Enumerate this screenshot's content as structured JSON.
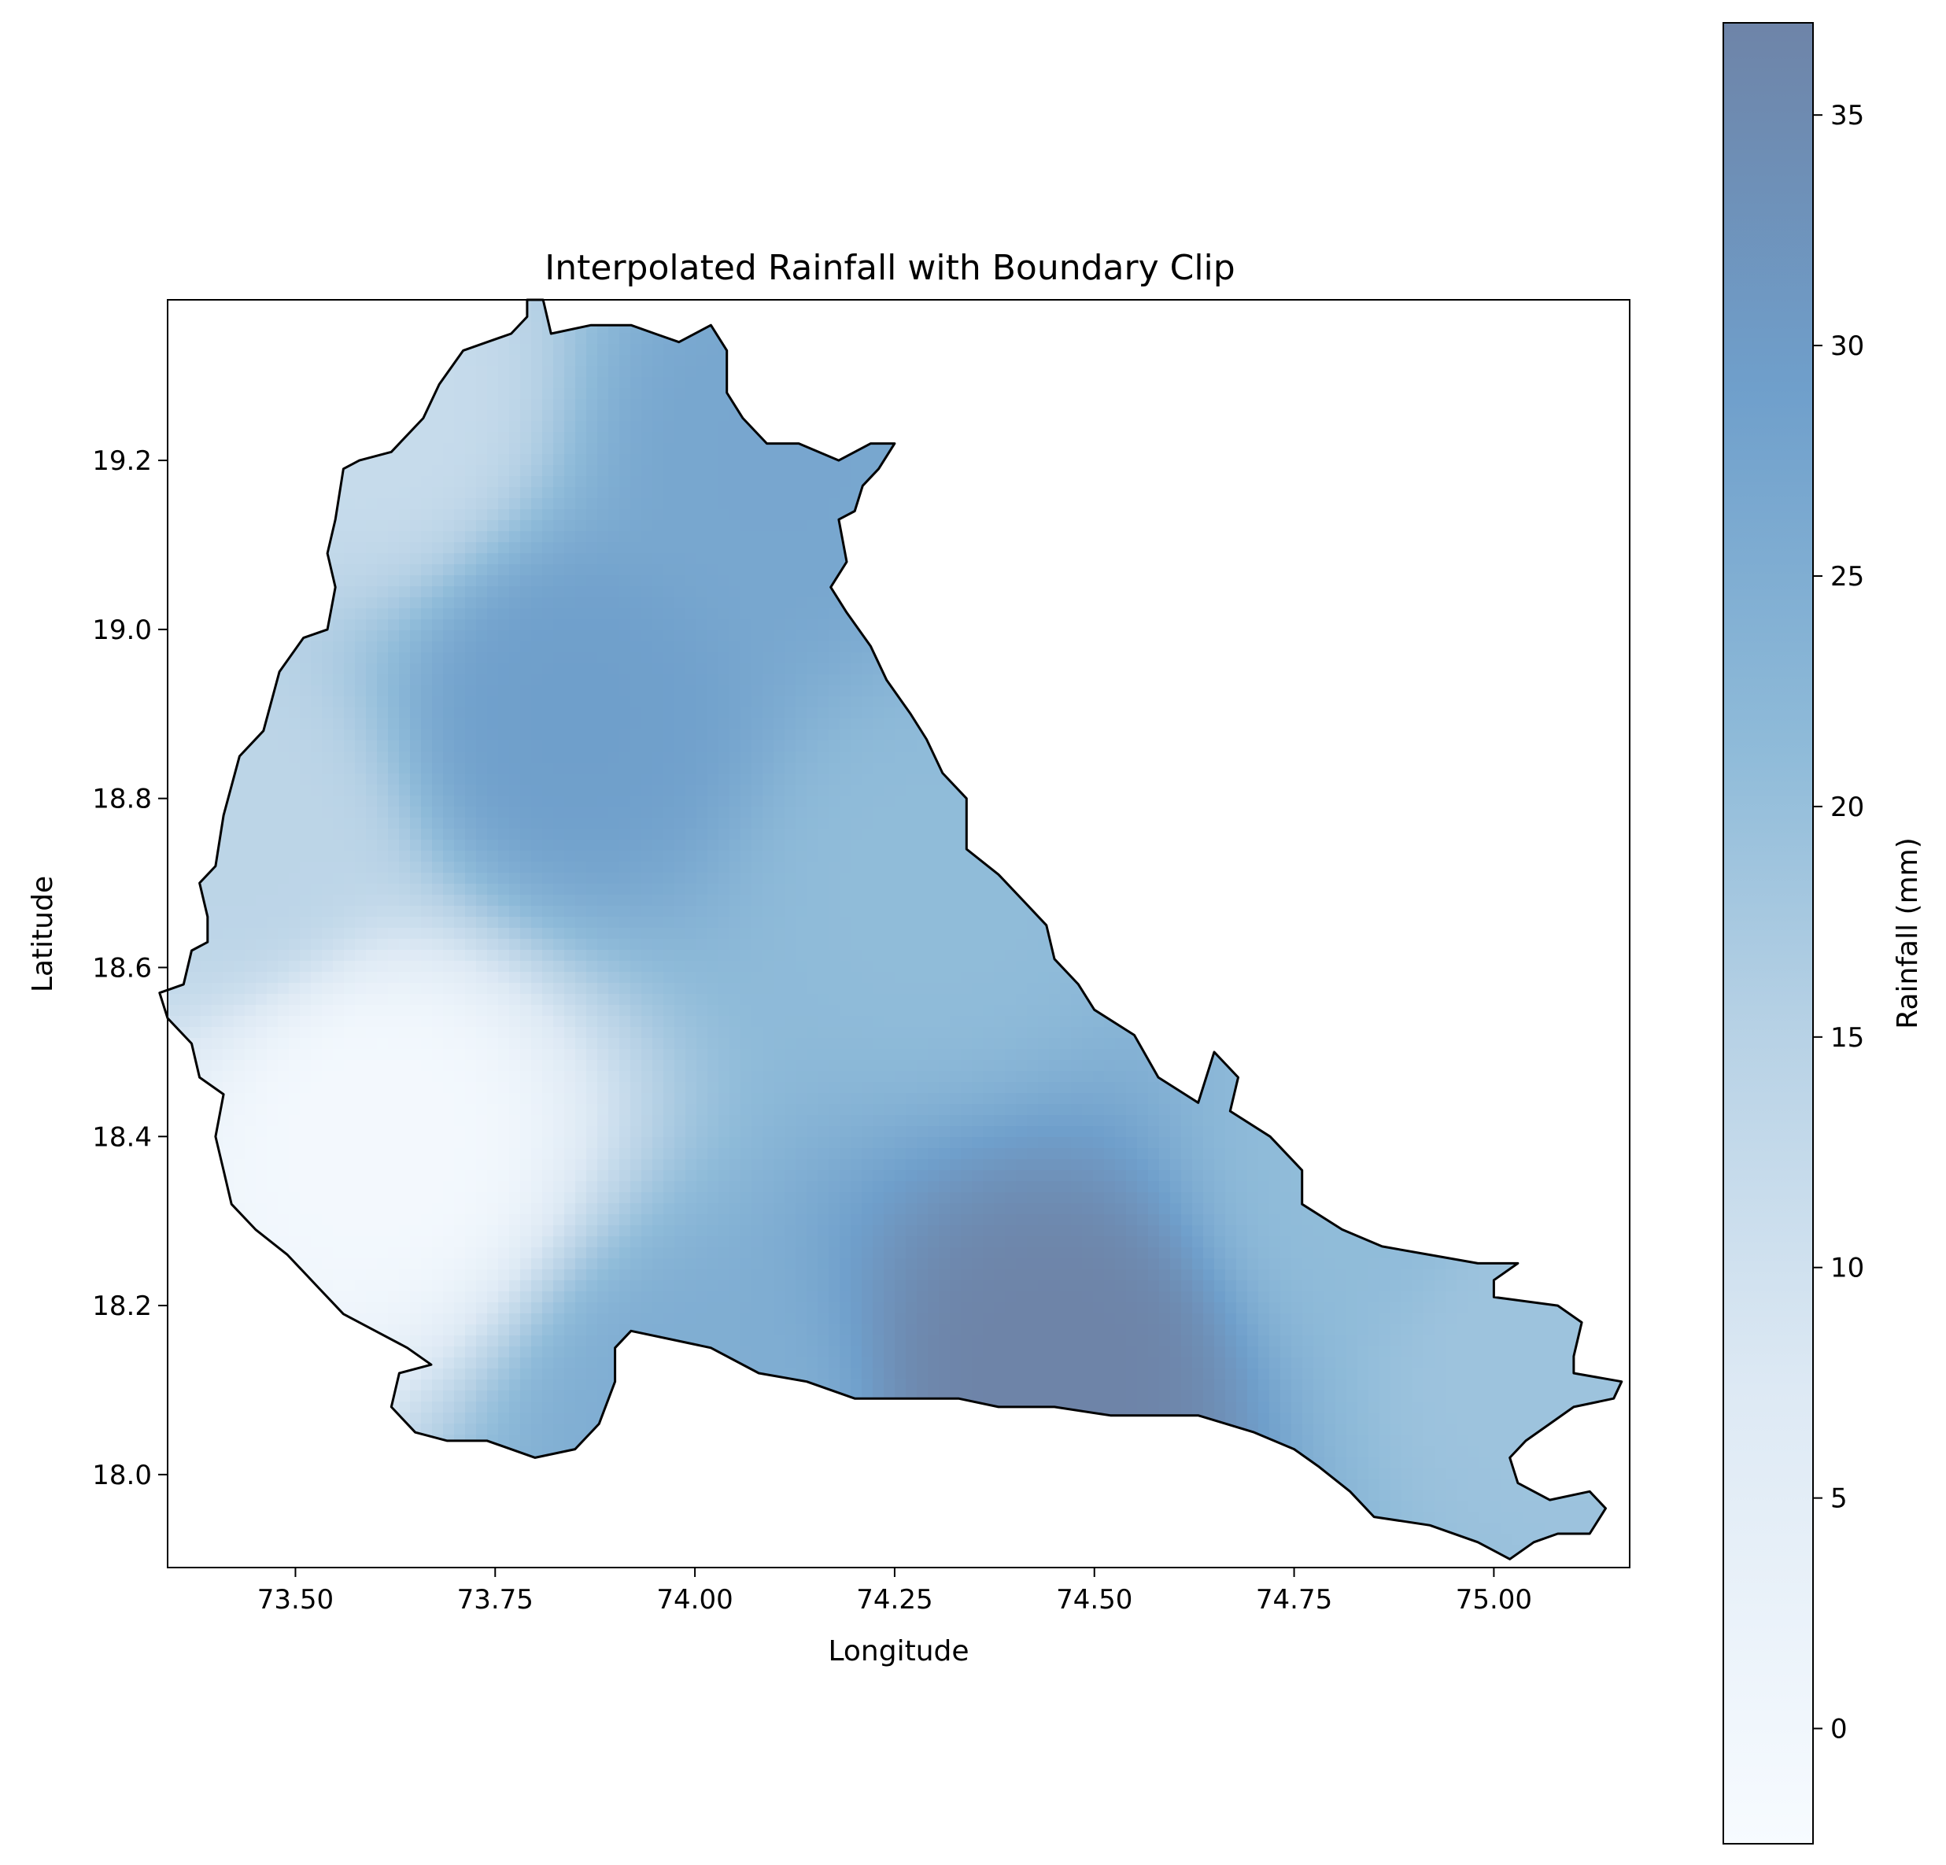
{
  "chart_data": {
    "type": "heatmap",
    "title": "Interpolated Rainfall with Boundary Clip",
    "xlabel": "Longitude",
    "ylabel": "Latitude",
    "xlim": [
      73.34,
      75.17
    ],
    "ylim": [
      17.89,
      19.39
    ],
    "xticks": [
      73.5,
      73.75,
      74.0,
      74.25,
      74.5,
      74.75,
      75.0
    ],
    "xtick_labels": [
      "73.50",
      "73.75",
      "74.00",
      "74.25",
      "74.50",
      "74.75",
      "75.00"
    ],
    "yticks": [
      18.0,
      18.2,
      18.4,
      18.6,
      18.8,
      19.0,
      19.2
    ],
    "ytick_labels": [
      "18.0",
      "18.2",
      "18.4",
      "18.6",
      "18.8",
      "19.0",
      "19.2"
    ],
    "grid": false,
    "colormap": "Blues (alpha 0.6)",
    "colorbar": {
      "label": "Rainfall (mm)",
      "range": [
        -2.5,
        37
      ],
      "ticks": [
        0,
        5,
        10,
        15,
        20,
        25,
        30,
        35
      ],
      "tick_labels": [
        "0",
        "5",
        "10",
        "15",
        "20",
        "25",
        "30",
        "35"
      ]
    },
    "interpolation_centers": [
      {
        "lon": 73.6,
        "lat": 18.4,
        "rainfall": -1.0
      },
      {
        "lon": 73.85,
        "lat": 18.9,
        "rainfall": 29.0
      },
      {
        "lon": 74.45,
        "lat": 18.12,
        "rainfall": 37.0
      },
      {
        "lon": 74.0,
        "lat": 18.05,
        "rainfall": 25.0
      },
      {
        "lon": 74.85,
        "lat": 18.35,
        "rainfall": 21.0
      },
      {
        "lon": 75.05,
        "lat": 18.15,
        "rainfall": 19.0
      },
      {
        "lon": 73.42,
        "lat": 18.75,
        "rainfall": 14.0
      },
      {
        "lon": 73.6,
        "lat": 19.25,
        "rainfall": 12.0
      },
      {
        "lon": 74.1,
        "lat": 19.2,
        "rainfall": 27.0
      },
      {
        "lon": 74.3,
        "lat": 18.7,
        "rainfall": 21.0
      }
    ],
    "boundary": [
      [
        73.33,
        18.57
      ],
      [
        73.36,
        18.58
      ],
      [
        73.37,
        18.62
      ],
      [
        73.39,
        18.63
      ],
      [
        73.39,
        18.66
      ],
      [
        73.38,
        18.7
      ],
      [
        73.4,
        18.72
      ],
      [
        73.41,
        18.78
      ],
      [
        73.43,
        18.85
      ],
      [
        73.46,
        18.88
      ],
      [
        73.48,
        18.95
      ],
      [
        73.51,
        18.99
      ],
      [
        73.54,
        19.0
      ],
      [
        73.55,
        19.05
      ],
      [
        73.54,
        19.09
      ],
      [
        73.55,
        19.13
      ],
      [
        73.56,
        19.19
      ],
      [
        73.58,
        19.2
      ],
      [
        73.62,
        19.21
      ],
      [
        73.66,
        19.25
      ],
      [
        73.68,
        19.29
      ],
      [
        73.71,
        19.33
      ],
      [
        73.74,
        19.34
      ],
      [
        73.77,
        19.35
      ],
      [
        73.79,
        19.37
      ],
      [
        73.79,
        19.39
      ],
      [
        73.81,
        19.39
      ],
      [
        73.82,
        19.35
      ],
      [
        73.87,
        19.36
      ],
      [
        73.92,
        19.36
      ],
      [
        73.95,
        19.35
      ],
      [
        73.98,
        19.34
      ],
      [
        74.02,
        19.36
      ],
      [
        74.04,
        19.33
      ],
      [
        74.04,
        19.28
      ],
      [
        74.06,
        19.25
      ],
      [
        74.09,
        19.22
      ],
      [
        74.13,
        19.22
      ],
      [
        74.18,
        19.2
      ],
      [
        74.22,
        19.22
      ],
      [
        74.25,
        19.22
      ],
      [
        74.23,
        19.19
      ],
      [
        74.21,
        19.17
      ],
      [
        74.2,
        19.14
      ],
      [
        74.18,
        19.13
      ],
      [
        74.19,
        19.08
      ],
      [
        74.17,
        19.05
      ],
      [
        74.19,
        19.02
      ],
      [
        74.22,
        18.98
      ],
      [
        74.24,
        18.94
      ],
      [
        74.27,
        18.9
      ],
      [
        74.29,
        18.87
      ],
      [
        74.31,
        18.83
      ],
      [
        74.34,
        18.8
      ],
      [
        74.34,
        18.74
      ],
      [
        74.38,
        18.71
      ],
      [
        74.41,
        18.68
      ],
      [
        74.44,
        18.65
      ],
      [
        74.45,
        18.61
      ],
      [
        74.48,
        18.58
      ],
      [
        74.5,
        18.55
      ],
      [
        74.55,
        18.52
      ],
      [
        74.58,
        18.47
      ],
      [
        74.63,
        18.44
      ],
      [
        74.65,
        18.5
      ],
      [
        74.68,
        18.47
      ],
      [
        74.67,
        18.43
      ],
      [
        74.72,
        18.4
      ],
      [
        74.76,
        18.36
      ],
      [
        74.76,
        18.32
      ],
      [
        74.81,
        18.29
      ],
      [
        74.86,
        18.27
      ],
      [
        74.92,
        18.26
      ],
      [
        74.98,
        18.25
      ],
      [
        75.03,
        18.25
      ],
      [
        75.0,
        18.23
      ],
      [
        75.0,
        18.21
      ],
      [
        75.08,
        18.2
      ],
      [
        75.11,
        18.18
      ],
      [
        75.1,
        18.14
      ],
      [
        75.1,
        18.12
      ],
      [
        75.16,
        18.11
      ],
      [
        75.15,
        18.09
      ],
      [
        75.1,
        18.08
      ],
      [
        75.07,
        18.06
      ],
      [
        75.04,
        18.04
      ],
      [
        75.02,
        18.02
      ],
      [
        75.03,
        17.99
      ],
      [
        75.07,
        17.97
      ],
      [
        75.12,
        17.98
      ],
      [
        75.14,
        17.96
      ],
      [
        75.12,
        17.93
      ],
      [
        75.08,
        17.93
      ],
      [
        75.05,
        17.92
      ],
      [
        75.02,
        17.9
      ],
      [
        74.98,
        17.92
      ],
      [
        74.92,
        17.94
      ],
      [
        74.85,
        17.95
      ],
      [
        74.82,
        17.98
      ],
      [
        74.78,
        18.01
      ],
      [
        74.75,
        18.03
      ],
      [
        74.7,
        18.05
      ],
      [
        74.63,
        18.07
      ],
      [
        74.58,
        18.07
      ],
      [
        74.52,
        18.07
      ],
      [
        74.45,
        18.08
      ],
      [
        74.38,
        18.08
      ],
      [
        74.33,
        18.09
      ],
      [
        74.28,
        18.09
      ],
      [
        74.2,
        18.09
      ],
      [
        74.14,
        18.11
      ],
      [
        74.08,
        18.12
      ],
      [
        74.02,
        18.15
      ],
      [
        73.97,
        18.16
      ],
      [
        73.92,
        18.17
      ],
      [
        73.9,
        18.15
      ],
      [
        73.9,
        18.11
      ],
      [
        73.88,
        18.06
      ],
      [
        73.85,
        18.03
      ],
      [
        73.8,
        18.02
      ],
      [
        73.74,
        18.04
      ],
      [
        73.69,
        18.04
      ],
      [
        73.65,
        18.05
      ],
      [
        73.62,
        18.08
      ],
      [
        73.63,
        18.12
      ],
      [
        73.67,
        18.13
      ],
      [
        73.64,
        18.15
      ],
      [
        73.6,
        18.17
      ],
      [
        73.56,
        18.19
      ],
      [
        73.53,
        18.22
      ],
      [
        73.49,
        18.26
      ],
      [
        73.45,
        18.29
      ],
      [
        73.42,
        18.32
      ],
      [
        73.41,
        18.36
      ],
      [
        73.4,
        18.4
      ],
      [
        73.41,
        18.45
      ],
      [
        73.38,
        18.47
      ],
      [
        73.37,
        18.51
      ],
      [
        73.34,
        18.54
      ],
      [
        73.33,
        18.57
      ]
    ]
  }
}
